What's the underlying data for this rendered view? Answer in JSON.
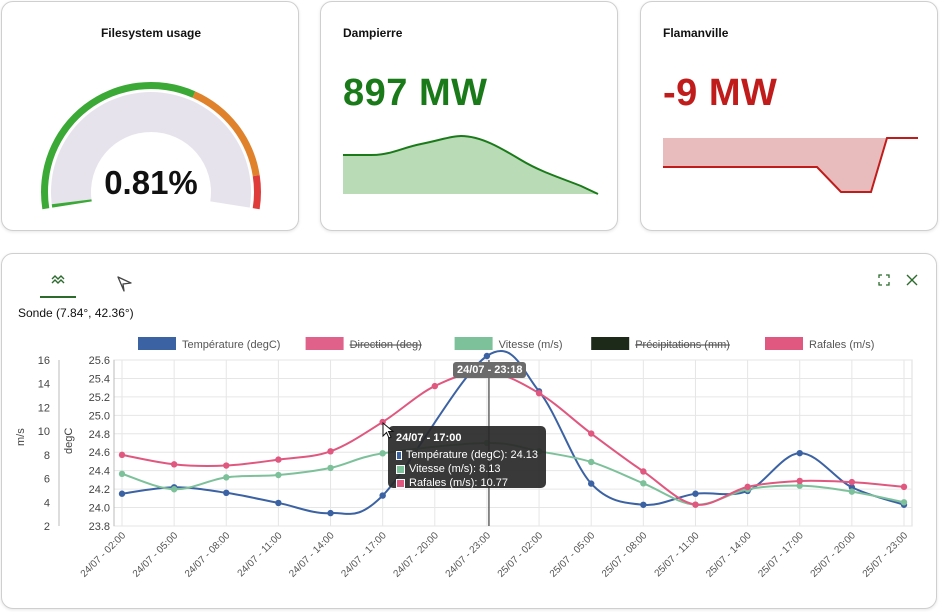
{
  "widgets": {
    "filesystem": {
      "title": "Filesystem usage",
      "value_text": "0.81%",
      "percent": 0.81,
      "colors": {
        "green": "#3aa935",
        "orange": "#e0822b",
        "red": "#e03b3b",
        "track": "#e7e3ec"
      }
    },
    "dampierre": {
      "title": "Dampierre",
      "value_text": "897 MW",
      "color": "#1a7a1a",
      "fill": "#b9dbb5"
    },
    "flamanville": {
      "title": "Flamanville",
      "value_text": "-9 MW",
      "color": "#c01c1c",
      "fill": "#e8bcbc"
    }
  },
  "panel": {
    "tabs": [
      {
        "name": "chart-line-icon",
        "active": true
      },
      {
        "name": "compass-icon",
        "active": false
      }
    ],
    "expand_icon": "expand-icon",
    "close_icon": "close-icon",
    "location": "Sonde (7.84°, 42.36°)"
  },
  "chart_data": {
    "type": "line",
    "legend": [
      {
        "name": "Température (degC)",
        "color": "#3b62a3",
        "hidden": false
      },
      {
        "name": "Direction (deg)",
        "color": "#e0628a",
        "hidden": true
      },
      {
        "name": "Vitesse (m/s)",
        "color": "#7dc19b",
        "hidden": false
      },
      {
        "name": "Précipitations (mm)",
        "color": "#1d2a1a",
        "hidden": true
      },
      {
        "name": "Rafales (m/s)",
        "color": "#e0577f",
        "hidden": false
      }
    ],
    "x": [
      "24/07 - 02:00",
      "24/07 - 05:00",
      "24/07 - 08:00",
      "24/07 - 11:00",
      "24/07 - 14:00",
      "24/07 - 17:00",
      "24/07 - 20:00",
      "24/07 - 23:00",
      "25/07 - 02:00",
      "25/07 - 05:00",
      "25/07 - 08:00",
      "25/07 - 11:00",
      "25/07 - 14:00",
      "25/07 - 17:00",
      "25/07 - 20:00",
      "25/07 - 23:00"
    ],
    "axes": {
      "left_outer": {
        "label": "m/s",
        "ticks": [
          "16",
          "14",
          "12",
          "10",
          "8",
          "6",
          "4",
          "2"
        ],
        "range": [
          2,
          16
        ]
      },
      "left_inner": {
        "label": "degC",
        "ticks": [
          "25.6",
          "25.4",
          "25.2",
          "25.0",
          "24.8",
          "24.6",
          "24.4",
          "24.2",
          "24.0",
          "23.8"
        ],
        "range": [
          23.8,
          25.6
        ]
      }
    },
    "series": [
      {
        "name": "Température (degC)",
        "axis": "left_inner",
        "color": "#3b62a3",
        "values": [
          24.15,
          24.22,
          24.16,
          24.05,
          23.94,
          24.13,
          null,
          25.68,
          25.26,
          24.26,
          24.03,
          24.15,
          24.18,
          24.59,
          24.22,
          24.03
        ]
      },
      {
        "name": "Vitesse (m/s)",
        "axis": "left_outer",
        "color": "#7dc19b",
        "values": [
          6.4,
          5.1,
          6.1,
          6.3,
          6.9,
          8.13,
          null,
          9.0,
          8.3,
          7.4,
          5.6,
          3.8,
          5.1,
          5.4,
          4.9,
          4.0
        ]
      },
      {
        "name": "Rafales (m/s)",
        "axis": "left_outer",
        "color": "#e0577f",
        "values": [
          8.0,
          7.2,
          7.1,
          7.6,
          8.3,
          10.77,
          13.8,
          15.0,
          13.2,
          9.8,
          6.6,
          3.8,
          5.3,
          5.8,
          5.7,
          5.3
        ]
      }
    ],
    "cursor": {
      "label": "24/07 - 23:18"
    },
    "tooltip": {
      "title": "24/07 - 17:00",
      "rows": [
        {
          "text": "Température (degC): 24.13",
          "color": "#3b62a3"
        },
        {
          "text": "Vitesse (m/s): 8.13",
          "color": "#7dc19b"
        },
        {
          "text": "Rafales (m/s): 10.77",
          "color": "#e0577f"
        }
      ]
    }
  }
}
